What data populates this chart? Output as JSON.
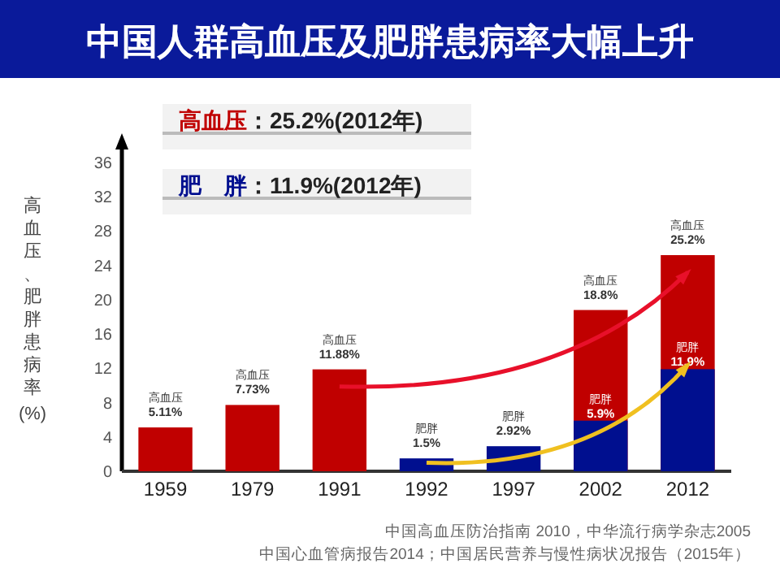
{
  "chart_data": {
    "type": "bar",
    "title": "中国人群高血压及肥胖患病率大幅上升",
    "ylabel": "高血压、肥胖患病率(%)",
    "categories": [
      "1959",
      "1979",
      "1991",
      "1992",
      "1997",
      "2002",
      "2012"
    ],
    "series": [
      {
        "name": "高血压",
        "color": "#c00000",
        "values": [
          5.11,
          7.73,
          11.88,
          null,
          null,
          18.8,
          25.2
        ],
        "value_labels": [
          "5.11%",
          "7.73%",
          "11.88%",
          null,
          null,
          "18.8%",
          "25.2%"
        ]
      },
      {
        "name": "肥胖",
        "color": "#000f8f",
        "values": [
          null,
          null,
          null,
          1.5,
          2.92,
          5.9,
          11.9
        ],
        "value_labels": [
          null,
          null,
          null,
          "1.5%",
          "2.92%",
          "5.9%",
          "11.9%"
        ]
      }
    ],
    "ylim": [
      0,
      36
    ],
    "yticks": [
      0,
      4,
      8,
      12,
      16,
      20,
      24,
      28,
      32,
      36
    ],
    "grid": false,
    "legend": false,
    "annotations": [
      "高血压：25.2%(2012年)",
      "肥　胖：11.9%(2012年)",
      "中国高血压防治指南 2010，中华流行病学杂志2005",
      "中国心血管病报告2014；中国居民营养与慢性病状况报告（2015年）"
    ]
  }
}
